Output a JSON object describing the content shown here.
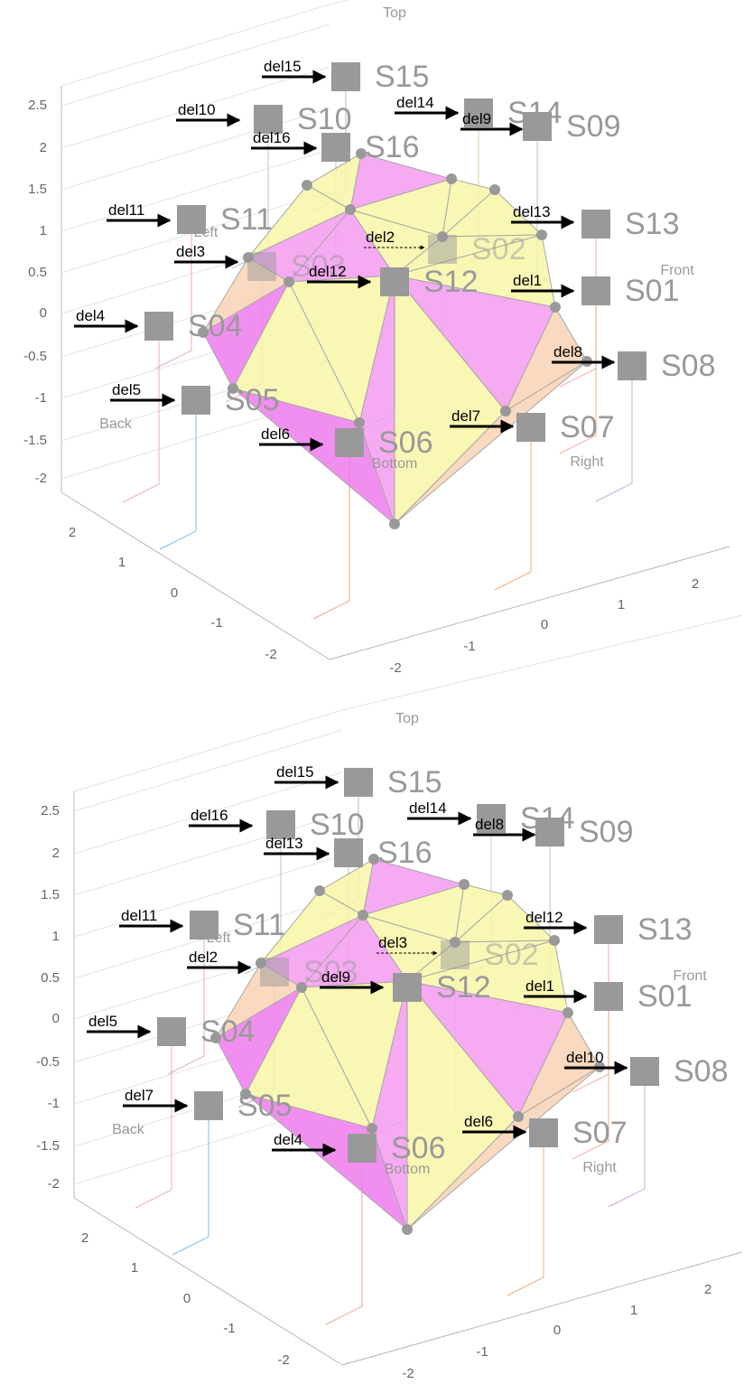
{
  "panels": [
    {
      "view_labels": {
        "top": "Top",
        "left": "Left",
        "front": "Front",
        "back": "Back",
        "right": "Right",
        "bottom": "Bottom"
      },
      "z_ticks": [
        "2.5",
        "2",
        "1.5",
        "1",
        "0.5",
        "0",
        "-0.5",
        "-1",
        "-1.5",
        "-2"
      ],
      "y_ticks": [
        "2",
        "1",
        "0",
        "-1",
        "-2"
      ],
      "x_ticks": [
        "-2",
        "-1",
        "0",
        "1",
        "2"
      ],
      "speakers": [
        "S15",
        "S10",
        "S14",
        "S09",
        "S16",
        "S11",
        "S13",
        "S02",
        "S03",
        "S12",
        "S01",
        "S04",
        "S08",
        "S05",
        "S07",
        "S06"
      ],
      "delays": [
        "del15",
        "del10",
        "del14",
        "del9",
        "del16",
        "del11",
        "del13",
        "del2",
        "del3",
        "del12",
        "del1",
        "del4",
        "del8",
        "del5",
        "del7",
        "del6"
      ]
    },
    {
      "view_labels": {
        "top": "Top",
        "left": "Left",
        "front": "Front",
        "back": "Back",
        "right": "Right",
        "bottom": "Bottom"
      },
      "z_ticks": [
        "2.5",
        "2",
        "1.5",
        "1",
        "0.5",
        "0",
        "-0.5",
        "-1",
        "-1.5",
        "-2"
      ],
      "y_ticks": [
        "2",
        "1",
        "0",
        "-1",
        "-2"
      ],
      "x_ticks": [
        "-2",
        "-1",
        "0",
        "1",
        "2"
      ],
      "speakers": [
        "S15",
        "S10",
        "S14",
        "S09",
        "S16",
        "S11",
        "S13",
        "S02",
        "S03",
        "S12",
        "S01",
        "S04",
        "S08",
        "S05",
        "S07",
        "S06"
      ],
      "delays": [
        "del15",
        "del16",
        "del14",
        "del8",
        "del13",
        "del11",
        "del12",
        "del3",
        "del2",
        "del9",
        "del1",
        "del5",
        "del10",
        "del7",
        "del6",
        "del4"
      ]
    }
  ]
}
